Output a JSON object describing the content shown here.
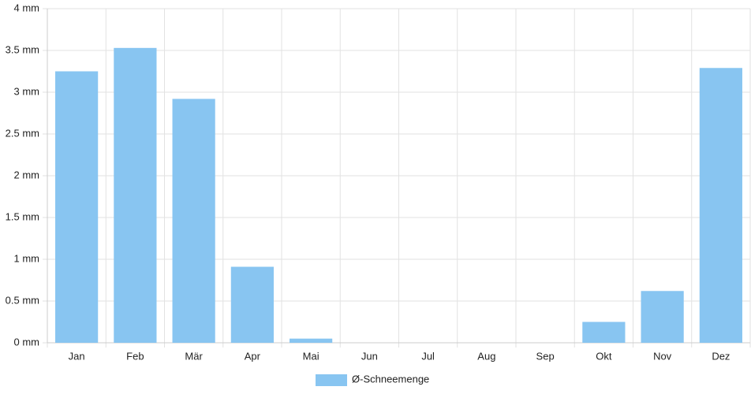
{
  "chart_data": {
    "type": "bar",
    "categories": [
      "Jan",
      "Feb",
      "Mär",
      "Apr",
      "Mai",
      "Jun",
      "Jul",
      "Aug",
      "Sep",
      "Okt",
      "Nov",
      "Dez"
    ],
    "series": [
      {
        "name": "Ø-Schneemenge",
        "color": "#88c5f1",
        "values": [
          3.25,
          3.53,
          2.92,
          0.91,
          0.05,
          0,
          0,
          0,
          0,
          0.25,
          0.62,
          3.29
        ]
      }
    ],
    "ylim": [
      0,
      4
    ],
    "yticks": [
      {
        "value": 0,
        "label": "0 mm"
      },
      {
        "value": 0.5,
        "label": "0.5 mm"
      },
      {
        "value": 1,
        "label": "1 mm"
      },
      {
        "value": 1.5,
        "label": "1.5 mm"
      },
      {
        "value": 2,
        "label": "2 mm"
      },
      {
        "value": 2.5,
        "label": "2.5 mm"
      },
      {
        "value": 3,
        "label": "3 mm"
      },
      {
        "value": 3.5,
        "label": "3.5 mm"
      },
      {
        "value": 4,
        "label": "4 mm"
      }
    ],
    "grid": true,
    "legend": "bottom"
  }
}
